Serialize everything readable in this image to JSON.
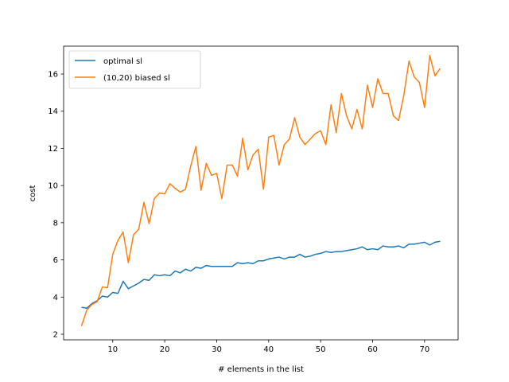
{
  "chart_data": {
    "type": "line",
    "title": "",
    "xlabel": "# elements in the list",
    "ylabel": "cost",
    "xlim": [
      0.55,
      76.45
    ],
    "ylim": [
      1.7,
      17.5
    ],
    "xticks": [
      10,
      20,
      30,
      40,
      50,
      60,
      70
    ],
    "yticks": [
      2,
      4,
      6,
      8,
      10,
      12,
      14,
      16
    ],
    "grid": false,
    "legend": "top-left",
    "x": [
      4,
      5,
      6,
      7,
      8,
      9,
      10,
      11,
      12,
      13,
      14,
      15,
      16,
      17,
      18,
      19,
      20,
      21,
      22,
      23,
      24,
      25,
      26,
      27,
      28,
      29,
      30,
      31,
      32,
      33,
      34,
      35,
      36,
      37,
      38,
      39,
      40,
      41,
      42,
      43,
      44,
      45,
      46,
      47,
      48,
      49,
      50,
      51,
      52,
      53,
      54,
      55,
      56,
      57,
      58,
      59,
      60,
      61,
      62,
      63,
      64,
      65,
      66,
      67,
      68,
      69,
      70,
      71,
      72,
      73
    ],
    "series": [
      {
        "name": "optimal sl",
        "color": "#1f77b4",
        "values": [
          3.45,
          3.4,
          3.65,
          3.8,
          4.05,
          4.0,
          4.25,
          4.2,
          4.85,
          4.45,
          4.6,
          4.75,
          4.95,
          4.9,
          5.2,
          5.15,
          5.2,
          5.15,
          5.4,
          5.3,
          5.5,
          5.4,
          5.6,
          5.55,
          5.7,
          5.65,
          5.65,
          5.65,
          5.65,
          5.65,
          5.85,
          5.8,
          5.85,
          5.8,
          5.95,
          5.95,
          6.05,
          6.1,
          6.15,
          6.05,
          6.15,
          6.15,
          6.3,
          6.15,
          6.2,
          6.3,
          6.35,
          6.45,
          6.4,
          6.45,
          6.45,
          6.5,
          6.55,
          6.6,
          6.7,
          6.55,
          6.6,
          6.55,
          6.75,
          6.7,
          6.7,
          6.75,
          6.65,
          6.85,
          6.85,
          6.9,
          6.95,
          6.8,
          6.95,
          7.0
        ]
      },
      {
        "name": "(10,20) biased sl",
        "color": "#ff7f0e",
        "values": [
          2.45,
          3.3,
          3.6,
          3.75,
          4.55,
          4.5,
          6.3,
          7.05,
          7.5,
          5.85,
          7.35,
          7.65,
          9.1,
          7.95,
          9.3,
          9.6,
          9.55,
          10.1,
          9.85,
          9.65,
          9.8,
          11.05,
          12.1,
          9.75,
          11.2,
          10.55,
          10.65,
          9.3,
          11.1,
          11.1,
          10.5,
          12.55,
          10.85,
          11.65,
          11.95,
          9.8,
          12.6,
          12.7,
          11.1,
          12.2,
          12.5,
          13.65,
          12.6,
          12.2,
          12.5,
          12.8,
          12.95,
          12.2,
          14.35,
          12.85,
          14.95,
          13.75,
          13.05,
          14.1,
          13.05,
          15.4,
          14.2,
          15.75,
          14.95,
          14.95,
          13.75,
          13.5,
          14.85,
          16.7,
          15.85,
          15.55,
          14.2,
          17.0,
          15.9,
          16.3
        ]
      }
    ]
  }
}
